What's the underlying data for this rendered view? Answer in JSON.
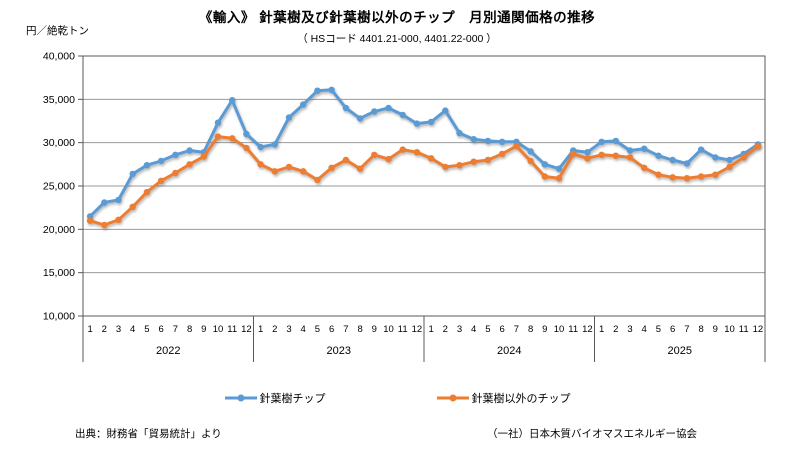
{
  "header": {
    "title": "《輸入》 針葉樹及び針葉樹以外のチップ　月別通関価格の推移",
    "subtitle": "（ HSコード  4401.21-000, 4401.22-000 ）",
    "unit_label": "円／絶乾トン"
  },
  "chart_data": {
    "type": "line",
    "title": "《輸入》 針葉樹及び針葉樹以外のチップ　月別通関価格の推移",
    "ylabel": "円／絶乾トン",
    "ylim": [
      10000,
      40000
    ],
    "ytick_step": 5000,
    "ytick_labels": [
      "40,000",
      "35,000",
      "30,000",
      "25,000",
      "20,000",
      "15,000",
      "10,000"
    ],
    "grid": true,
    "legend_position": "bottom",
    "years": [
      "2022",
      "2023",
      "2024",
      "2025"
    ],
    "month_labels": [
      "1",
      "2",
      "3",
      "4",
      "5",
      "6",
      "7",
      "8",
      "9",
      "10",
      "11",
      "12"
    ],
    "series": [
      {
        "id": "softwood-chip-series",
        "name": "針葉樹チップ",
        "color": "#5B9BD5",
        "values": {
          "2022": [
            21500,
            23100,
            23400,
            26400,
            27400,
            27900,
            28600,
            29100,
            28900,
            32300,
            34900,
            31000
          ],
          "2023": [
            29500,
            29800,
            32900,
            34400,
            36000,
            36100,
            34000,
            32800,
            33600,
            34000,
            33200,
            32200
          ],
          "2024": [
            32400,
            33700,
            31100,
            30400,
            30200,
            30100,
            30100,
            29000,
            27500,
            27000,
            29100,
            28900
          ],
          "2025": [
            30100,
            30200,
            29100,
            29300,
            28500,
            28000,
            27600,
            29200,
            28300,
            28000,
            28700,
            29800
          ]
        }
      },
      {
        "id": "other-chip-series",
        "name": "針葉樹以外のチップ",
        "color": "#ED7D31",
        "values": {
          "2022": [
            21000,
            20500,
            21100,
            22600,
            24300,
            25600,
            26500,
            27500,
            28400,
            30700,
            30500,
            29400
          ],
          "2023": [
            27500,
            26700,
            27200,
            26700,
            25700,
            27100,
            28000,
            27000,
            28600,
            28100,
            29200,
            28900
          ],
          "2024": [
            28200,
            27200,
            27400,
            27800,
            28000,
            28700,
            29600,
            27900,
            26100,
            25900,
            28700,
            28200
          ],
          "2025": [
            28600,
            28500,
            28300,
            27100,
            26300,
            26000,
            25900,
            26100,
            26300,
            27200,
            28300,
            29600
          ]
        }
      }
    ]
  },
  "legend": {
    "items": [
      {
        "label": "針葉樹チップ",
        "color": "#5B9BD5",
        "marker": "line-dot"
      },
      {
        "label": "針葉樹以外のチップ",
        "color": "#ED7D31",
        "marker": "line-dot"
      }
    ]
  },
  "footer": {
    "source": "出典：財務省「貿易統計」より",
    "org": "（一社）日本木質バイオマスエネルギー協会"
  },
  "colors": {
    "softwood": "#5B9BD5",
    "other": "#ED7D31",
    "grid": "#999999",
    "frame": "#595959",
    "background": "#FFFFFF"
  }
}
